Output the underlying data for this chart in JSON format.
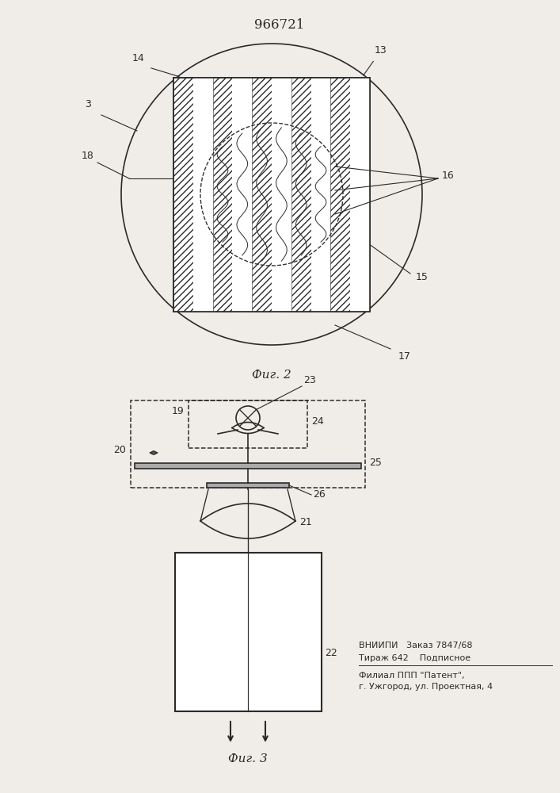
{
  "title": "966721",
  "fig2_label": "Фиг. 2",
  "fig3_label": "Фиг. 3",
  "footer_line1": "ВНИИПИ   Заказ 7847/68",
  "footer_line2": "Тираж 642    Подписное",
  "footer_line3": "Филиал ППП \"Патент\",",
  "footer_line4": "г. Ужгород, ул. Проектная, 4",
  "bg_color": "#f0ede8",
  "line_color": "#2a2a2a"
}
